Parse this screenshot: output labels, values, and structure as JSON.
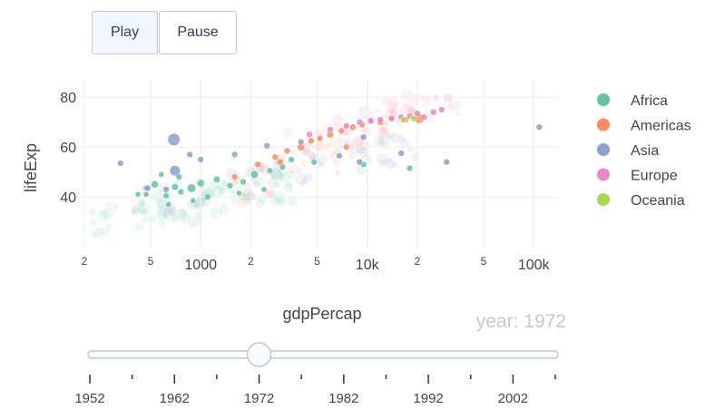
{
  "controls": {
    "play_label": "Play",
    "pause_label": "Pause"
  },
  "colors": {
    "Africa": "#66c2a5",
    "Americas": "#fc8d62",
    "Asia": "#8da0cb",
    "Europe": "#e78ac3",
    "Oceania": "#a6d854",
    "grid": "#eeeeee",
    "slider_rail": "#bec8d9"
  },
  "slider": {
    "current_label": "year: 1972",
    "current_year": 1972,
    "year_min": 1952,
    "year_max": 2007,
    "labels": [
      "1952",
      "1962",
      "1972",
      "1982",
      "1992",
      "2002"
    ]
  },
  "chart_data": {
    "type": "scatter",
    "title": "",
    "xlabel": "gdpPercap",
    "ylabel": "lifeExp",
    "x_scale": "log",
    "xlim": [
      170,
      140000
    ],
    "ylim": [
      20,
      87
    ],
    "x_ticks": [
      {
        "value": 200,
        "label": "2"
      },
      {
        "value": 500,
        "label": "5"
      },
      {
        "value": 1000,
        "label": "1000"
      },
      {
        "value": 2000,
        "label": "2"
      },
      {
        "value": 5000,
        "label": "5"
      },
      {
        "value": 10000,
        "label": "10k"
      },
      {
        "value": 20000,
        "label": "2"
      },
      {
        "value": 50000,
        "label": "5"
      },
      {
        "value": 100000,
        "label": "100k"
      }
    ],
    "y_ticks": [
      {
        "value": 40,
        "label": "40"
      },
      {
        "value": 60,
        "label": "60"
      },
      {
        "value": 80,
        "label": "80"
      }
    ],
    "grid": true,
    "legend_position": "right",
    "series": [
      {
        "name": "Africa",
        "points": [
          [
            530,
            45.0,
            1.2
          ],
          [
            700,
            44.0,
            1.1
          ],
          [
            620,
            40.5,
            1.0
          ],
          [
            760,
            42.0,
            1.0
          ],
          [
            880,
            43.5,
            1.4
          ],
          [
            1000,
            45.5,
            1.2
          ],
          [
            1250,
            47.0,
            1.1
          ],
          [
            1500,
            44.5,
            1.0
          ],
          [
            1800,
            46.0,
            1.0
          ],
          [
            2100,
            49.0,
            1.2
          ],
          [
            2600,
            50.5,
            1.0
          ],
          [
            3100,
            52.0,
            1.0
          ],
          [
            420,
            41.0,
            0.9
          ],
          [
            580,
            49.0,
            0.9
          ],
          [
            640,
            37.0,
            0.9
          ],
          [
            900,
            38.5,
            0.9
          ],
          [
            1100,
            40.0,
            1.0
          ],
          [
            1700,
            41.5,
            0.9
          ],
          [
            2400,
            43.0,
            0.9
          ],
          [
            3500,
            55.0,
            1.0
          ],
          [
            4800,
            54.0,
            1.0
          ],
          [
            9500,
            53.0,
            1.0
          ],
          [
            18000,
            51.5,
            1.0
          ],
          [
            740,
            48.0,
            1.0
          ],
          [
            470,
            43.5,
            1.0
          ]
        ]
      },
      {
        "name": "Americas",
        "points": [
          [
            1600,
            48.0,
            1.0
          ],
          [
            2200,
            53.0,
            1.0
          ],
          [
            2800,
            56.0,
            1.0
          ],
          [
            3300,
            58.5,
            1.0
          ],
          [
            4000,
            60.0,
            1.2
          ],
          [
            4600,
            62.5,
            1.0
          ],
          [
            5200,
            63.5,
            1.0
          ],
          [
            6000,
            65.0,
            1.1
          ],
          [
            7000,
            66.5,
            1.0
          ],
          [
            8200,
            68.0,
            1.0
          ],
          [
            9300,
            69.0,
            1.0
          ],
          [
            10500,
            70.5,
            1.0
          ],
          [
            12000,
            70.0,
            1.0
          ],
          [
            14000,
            71.5,
            1.0
          ],
          [
            17000,
            71.0,
            1.0
          ],
          [
            20500,
            71.5,
            1.6
          ],
          [
            7500,
            60.0,
            1.0
          ],
          [
            3000,
            54.0,
            1.0
          ]
        ]
      },
      {
        "name": "Asia",
        "points": [
          [
            690,
            63.0,
            2.0
          ],
          [
            700,
            50.5,
            1.7
          ],
          [
            330,
            53.5,
            1.0
          ],
          [
            480,
            43.5,
            1.0
          ],
          [
            620,
            43.0,
            1.0
          ],
          [
            470,
            41.0,
            0.9
          ],
          [
            1000,
            55.0,
            1.0
          ],
          [
            1600,
            57.0,
            1.0
          ],
          [
            2500,
            60.5,
            1.0
          ],
          [
            4000,
            62.0,
            1.0
          ],
          [
            6800,
            56.5,
            1.0
          ],
          [
            9000,
            54.0,
            1.0
          ],
          [
            16000,
            57.5,
            1.0
          ],
          [
            30000,
            54.0,
            1.0
          ],
          [
            108000,
            68.0,
            1.0
          ],
          [
            9500,
            64.0,
            1.0
          ],
          [
            860,
            57.0,
            1.0
          ]
        ]
      },
      {
        "name": "Europe",
        "points": [
          [
            4500,
            65.0,
            1.0
          ],
          [
            6000,
            67.0,
            1.0
          ],
          [
            7500,
            68.5,
            1.0
          ],
          [
            9000,
            70.0,
            1.0
          ],
          [
            10500,
            70.5,
            1.0
          ],
          [
            12000,
            71.0,
            1.0
          ],
          [
            14000,
            71.5,
            1.0
          ],
          [
            16000,
            72.0,
            1.0
          ],
          [
            18000,
            72.5,
            1.0
          ],
          [
            20000,
            73.5,
            1.0
          ],
          [
            22000,
            72.0,
            1.0
          ],
          [
            25000,
            74.0,
            1.0
          ],
          [
            28000,
            75.0,
            1.0
          ]
        ]
      },
      {
        "name": "Oceania",
        "points": [
          [
            16500,
            71.0,
            1.0
          ],
          [
            19000,
            71.5,
            1.0
          ]
        ]
      }
    ]
  }
}
